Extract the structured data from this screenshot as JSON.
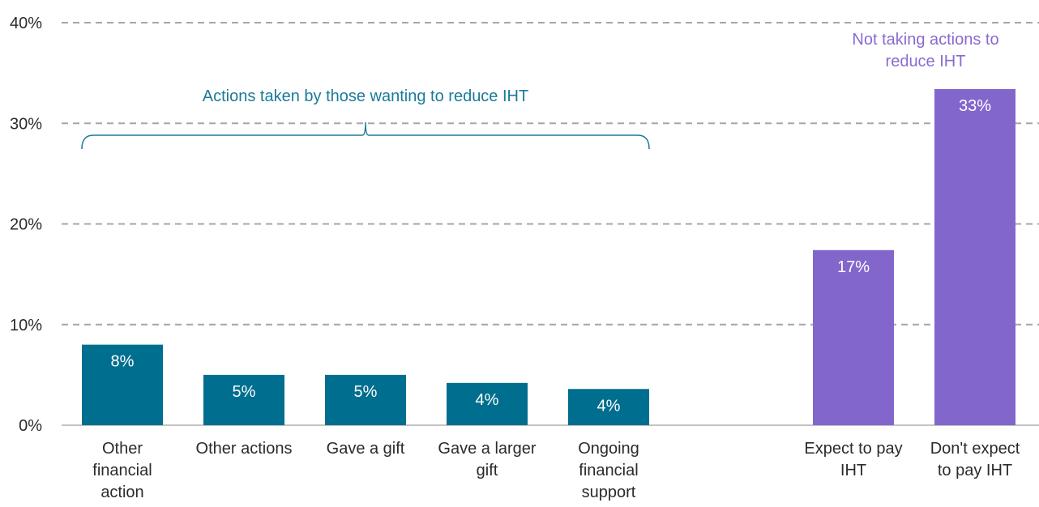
{
  "colors": {
    "actions": "#006e8e",
    "not_actions": "#8366cc",
    "bracket": "#1a7a9a",
    "purple_text": "#8a6ad0",
    "grid": "#a6a6a6",
    "axis": "#888888"
  },
  "chart_data": {
    "type": "bar",
    "ylim": [
      0,
      40
    ],
    "yticks": [
      "0%",
      "10%",
      "20%",
      "30%",
      "40%"
    ],
    "grid": true,
    "categories": [
      "Other financial action",
      "Other actions",
      "Gave a gift",
      "Gave a larger gift",
      "Ongoing financial support",
      "Expect to pay IHT",
      "Don't expect to pay IHT"
    ],
    "category_lines": [
      [
        "Other",
        "financial",
        "action"
      ],
      [
        "Other actions"
      ],
      [
        "Gave a gift"
      ],
      [
        "Gave a larger",
        "gift"
      ],
      [
        "Ongoing",
        "financial",
        "support"
      ],
      [
        "Expect to pay",
        "IHT"
      ],
      [
        "Don't expect",
        "to pay IHT"
      ]
    ],
    "values": [
      8,
      5,
      5,
      4.2,
      3.6,
      17.4,
      33.4
    ],
    "data_labels": [
      "8%",
      "5%",
      "5%",
      "4%",
      "4%",
      "17%",
      "33%"
    ],
    "groups": [
      "actions",
      "actions",
      "actions",
      "actions",
      "actions",
      "not_actions",
      "not_actions"
    ],
    "annotations": {
      "actions_group": "Actions taken by those wanting to reduce IHT",
      "not_actions_group_lines": [
        "Not taking actions to",
        "reduce IHT"
      ]
    }
  }
}
